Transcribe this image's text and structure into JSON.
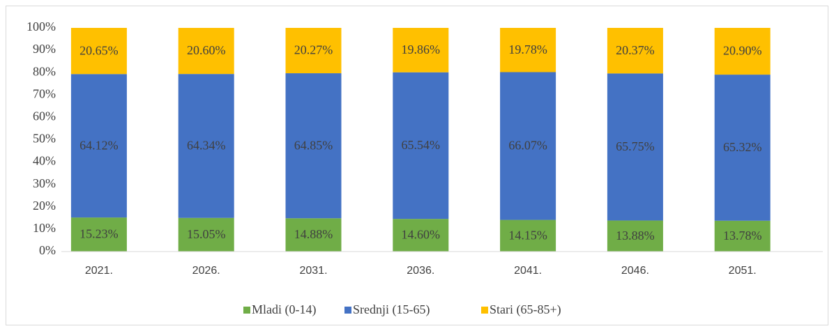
{
  "chart_data": {
    "type": "stacked_bar",
    "categories": [
      "2021.",
      "2026.",
      "2031.",
      "2036.",
      "2041.",
      "2046.",
      "2051."
    ],
    "series": [
      {
        "name": "Mladi (0-14)",
        "color": "#70ad47",
        "values": [
          15.23,
          15.05,
          14.88,
          14.6,
          14.15,
          13.88,
          13.78
        ],
        "value_labels": [
          "15.23%",
          "15.05%",
          "14.88%",
          "14.60%",
          "14.15%",
          "13.88%",
          "13.78%"
        ]
      },
      {
        "name": "Srednji (15-65)",
        "color": "#4472c4",
        "values": [
          64.12,
          64.34,
          64.85,
          65.54,
          66.07,
          65.75,
          65.32
        ],
        "value_labels": [
          "64.12%",
          "64.34%",
          "64.85%",
          "65.54%",
          "66.07%",
          "65.75%",
          "65.32%"
        ]
      },
      {
        "name": "Stari (65-85+)",
        "color": "#ffc000",
        "values": [
          20.65,
          20.6,
          20.27,
          19.86,
          19.78,
          20.37,
          20.9
        ],
        "value_labels": [
          "20.65%",
          "20.60%",
          "20.27%",
          "19.86%",
          "19.78%",
          "20.37%",
          "20.90%"
        ]
      }
    ],
    "ylim": [
      0,
      100
    ],
    "yticks": [
      {
        "value": 0,
        "label": "0%"
      },
      {
        "value": 10,
        "label": "10%"
      },
      {
        "value": 20,
        "label": "20%"
      },
      {
        "value": 30,
        "label": "30%"
      },
      {
        "value": 40,
        "label": "40%"
      },
      {
        "value": 50,
        "label": "50%"
      },
      {
        "value": 60,
        "label": "60%"
      },
      {
        "value": 70,
        "label": "70%"
      },
      {
        "value": 80,
        "label": "80%"
      },
      {
        "value": 90,
        "label": "90%"
      },
      {
        "value": 100,
        "label": "100%"
      }
    ],
    "legend": "bottom"
  }
}
